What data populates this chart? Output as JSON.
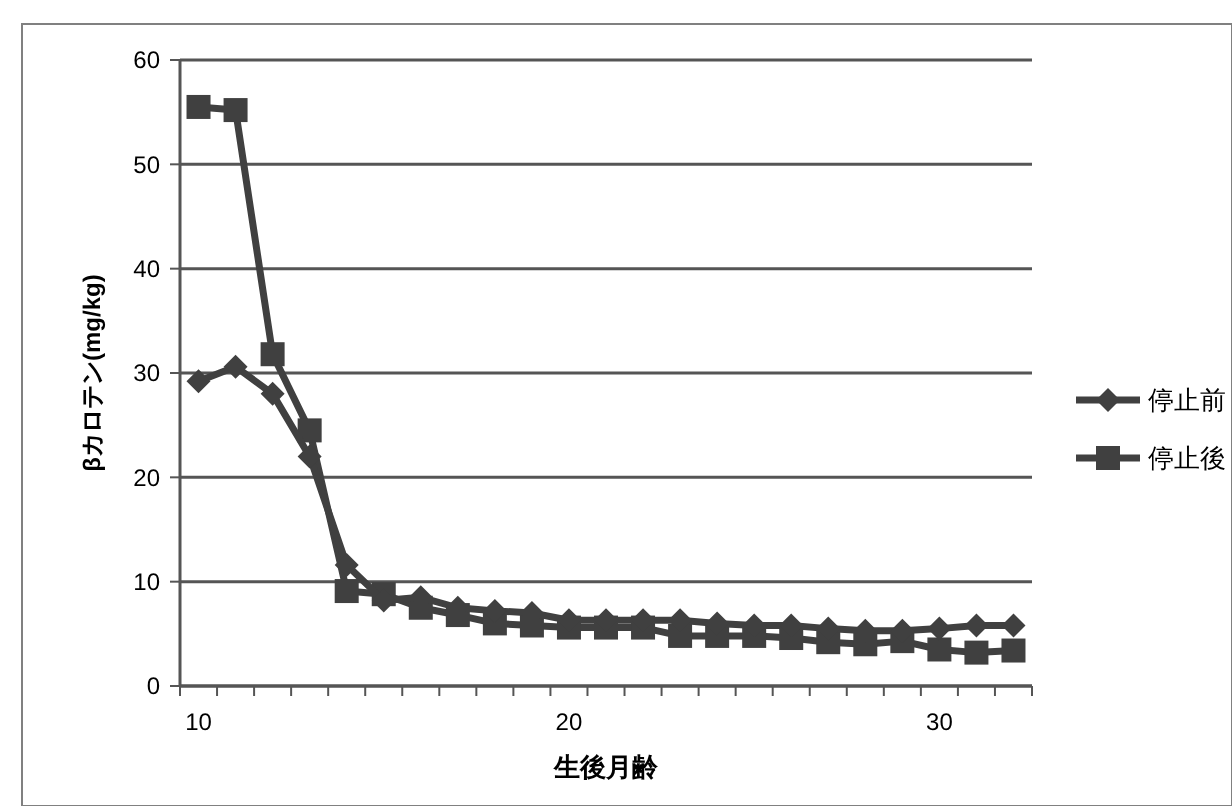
{
  "chart_data": {
    "type": "line",
    "xlabel": "生後月齢",
    "ylabel": "βカロテン(mg/kg)",
    "categories": [
      "10",
      null,
      null,
      null,
      null,
      null,
      null,
      null,
      null,
      null,
      "20",
      null,
      null,
      null,
      null,
      null,
      null,
      null,
      null,
      null,
      "30",
      null,
      null
    ],
    "ylim": [
      0,
      60
    ],
    "yticks": [
      0,
      10,
      20,
      30,
      40,
      50,
      60
    ],
    "grid": "y",
    "legend": "right",
    "line_style": "solid",
    "series": [
      {
        "name": "停止前",
        "color": "#404040",
        "marker": "diamond",
        "values": [
          29.2,
          30.6,
          28,
          22,
          11.6,
          8.2,
          8.5,
          7.5,
          7.2,
          7,
          6.3,
          6.3,
          6.3,
          6.3,
          6,
          5.8,
          5.8,
          5.5,
          5.3,
          5.3,
          5.5,
          5.8,
          5.8
        ]
      },
      {
        "name": "停止後",
        "color": "#404040",
        "marker": "square",
        "values": [
          55.5,
          55.2,
          31.8,
          24.5,
          9.1,
          8.8,
          7.5,
          6.8,
          6,
          5.8,
          5.6,
          5.6,
          5.6,
          4.8,
          4.8,
          4.8,
          4.6,
          4.2,
          4,
          4.3,
          3.5,
          3.2,
          3.4
        ]
      }
    ]
  }
}
